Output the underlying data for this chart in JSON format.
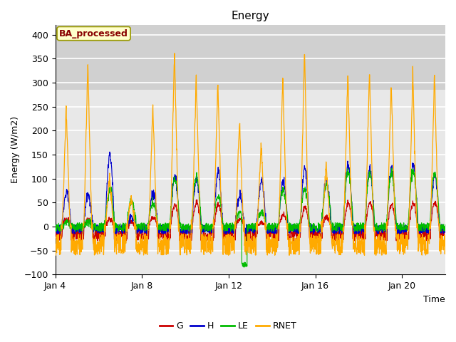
{
  "title": "Energy",
  "xlabel": "Time",
  "ylabel": "Energy (W/m2)",
  "ylim": [
    -100,
    420
  ],
  "yticks": [
    -100,
    -50,
    0,
    50,
    100,
    150,
    200,
    250,
    300,
    350,
    400
  ],
  "xtick_labels": [
    "Jan 4",
    "Jan 8",
    "Jan 12",
    "Jan 16",
    "Jan 20"
  ],
  "bg_outer": "#ffffff",
  "plot_bg_light": "#e8e8e8",
  "plot_bg_dark": "#d0d0d0",
  "grid_color": "#ffffff",
  "colors": {
    "G": "#cc0000",
    "H": "#0000cc",
    "LE": "#00bb00",
    "RNET": "#ffaa00"
  },
  "label_box_text": "BA_processed",
  "label_box_facecolor": "#ffffcc",
  "label_box_edgecolor": "#999900",
  "label_box_textcolor": "#880000",
  "n_days": 18,
  "points_per_day": 96,
  "shade_threshold": 285
}
